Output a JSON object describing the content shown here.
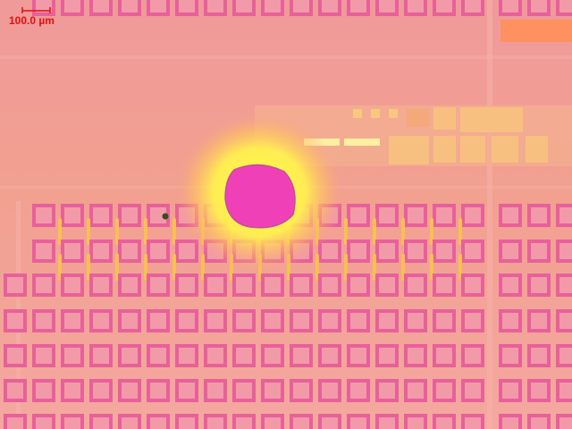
{
  "scale_bar": {
    "label": "100.0 µm"
  }
}
